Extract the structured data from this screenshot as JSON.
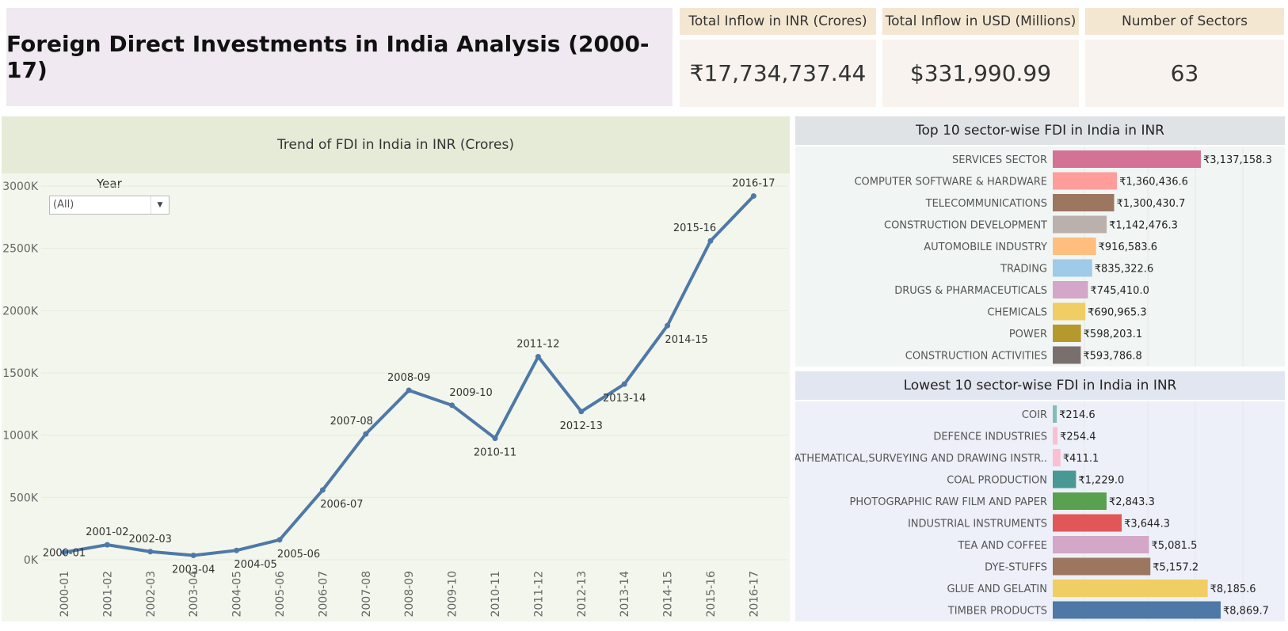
{
  "header": {
    "title": "Foreign Direct Investments in India Analysis (2000-17)"
  },
  "kpis": [
    {
      "label": "Total Inflow in INR (Crores)",
      "value": "₹17,734,737.44"
    },
    {
      "label": "Total Inflow in USD (Millions)",
      "value": "$331,990.99"
    },
    {
      "label": "Number of Sectors",
      "value": "63"
    }
  ],
  "filter": {
    "label": "Year",
    "value": "(All)"
  },
  "colors": {
    "line": "#4e79a7"
  },
  "chart_data": [
    {
      "type": "line",
      "title": "Trend of FDI in India in INR (Crores)",
      "x": [
        "2000-01",
        "2001-02",
        "2002-03",
        "2003-04",
        "2004-05",
        "2005-06",
        "2006-07",
        "2007-08",
        "2008-09",
        "2009-10",
        "2010-11",
        "2011-12",
        "2012-13",
        "2013-14",
        "2014-15",
        "2015-16",
        "2016-17"
      ],
      "values": [
        60000,
        120000,
        65000,
        35000,
        75000,
        160000,
        560000,
        1010000,
        1360000,
        1240000,
        975000,
        1630000,
        1190000,
        1410000,
        1880000,
        2560000,
        2920000
      ],
      "yticks": [
        "0K",
        "500K",
        "1000K",
        "1500K",
        "2000K",
        "2500K",
        "3000K"
      ],
      "ylim": [
        0,
        3000000
      ],
      "grid": true
    },
    {
      "type": "bar",
      "orientation": "horizontal",
      "title": "Top 10 sector-wise FDI in India in INR",
      "categories": [
        "SERVICES SECTOR",
        "COMPUTER SOFTWARE & HARDWARE",
        "TELECOMMUNICATIONS",
        "CONSTRUCTION DEVELOPMENT",
        "AUTOMOBILE INDUSTRY",
        "TRADING",
        "DRUGS & PHARMACEUTICALS",
        "CHEMICALS",
        "POWER",
        "CONSTRUCTION  ACTIVITIES"
      ],
      "values": [
        3137158.3,
        1360436.6,
        1300430.7,
        1142476.3,
        916583.6,
        835322.6,
        745410.0,
        690965.3,
        598203.1,
        593786.8
      ],
      "labels": [
        "₹3,137,158.3",
        "₹1,360,436.6",
        "₹1,300,430.7",
        "₹1,142,476.3",
        "₹916,583.6",
        "₹835,322.6",
        "₹745,410.0",
        "₹690,965.3",
        "₹598,203.1",
        "₹593,786.8"
      ],
      "colors": [
        "#d37295",
        "#ff9d9a",
        "#9d7660",
        "#bab0ac",
        "#ffbe7d",
        "#a0cbe8",
        "#d4a6c8",
        "#f1ce63",
        "#b6992d",
        "#79706e"
      ],
      "xlim": [
        0,
        3137158.3
      ]
    },
    {
      "type": "bar",
      "orientation": "horizontal",
      "title": "Lowest 10 sector-wise FDI in India in INR",
      "categories": [
        "COIR",
        "DEFENCE INDUSTRIES",
        "MATHEMATICAL,SURVEYING AND DRAWING INSTR..",
        "COAL PRODUCTION",
        "PHOTOGRAPHIC RAW FILM AND PAPER",
        "INDUSTRIAL INSTRUMENTS",
        "TEA AND COFFEE",
        "DYE-STUFFS",
        "GLUE AND GELATIN",
        "TIMBER PRODUCTS"
      ],
      "values": [
        214.6,
        254.4,
        411.1,
        1229.0,
        2843.3,
        3644.3,
        5081.5,
        5157.2,
        8185.6,
        8869.7
      ],
      "labels": [
        "₹214.6",
        "₹254.4",
        "₹411.1",
        "₹1,229.0",
        "₹2,843.3",
        "₹3,644.3",
        "₹5,081.5",
        "₹5,157.2",
        "₹8,185.6",
        "₹8,869.7"
      ],
      "colors": [
        "#86bcb6",
        "#fabfd2",
        "#fabfd2",
        "#499894",
        "#59a14f",
        "#e15759",
        "#d4a6c8",
        "#9d7660",
        "#f1ce63",
        "#4e79a7"
      ],
      "xlim": [
        0,
        8869.7
      ]
    }
  ]
}
